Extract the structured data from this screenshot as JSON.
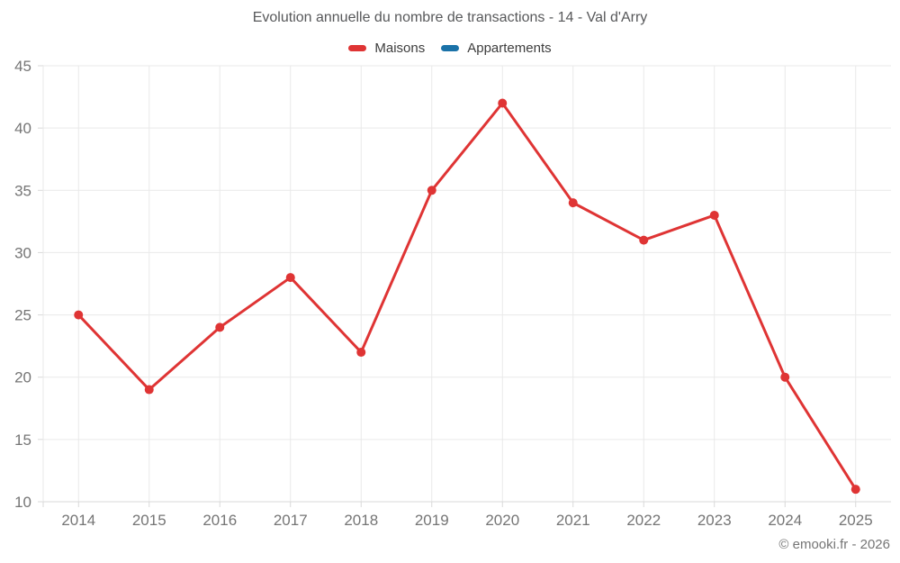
{
  "header": {
    "title": "Evolution annuelle du nombre de transactions - 14 - Val d'Arry"
  },
  "legend": {
    "items": [
      {
        "label": "Maisons",
        "color": "#df3434"
      },
      {
        "label": "Appartements",
        "color": "#1a72a8"
      }
    ]
  },
  "footer": {
    "copyright": "© emooki.fr - 2026"
  },
  "colors": {
    "grid": "#e9e9e9",
    "axis_line": "#d9d9d9",
    "tick_label": "#757575",
    "series_maisons": "#df3434",
    "series_appartements": "#1a72a8"
  },
  "chart_data": {
    "type": "line",
    "title": "Evolution annuelle du nombre de transactions - 14 - Val d'Arry",
    "x": [
      "2014",
      "2015",
      "2016",
      "2017",
      "2018",
      "2019",
      "2020",
      "2021",
      "2022",
      "2023",
      "2024",
      "2025"
    ],
    "series": [
      {
        "name": "Maisons",
        "color": "#df3434",
        "values": [
          25,
          19,
          24,
          28,
          22,
          35,
          42,
          34,
          31,
          33,
          20,
          11
        ]
      },
      {
        "name": "Appartements",
        "color": "#1a72a8",
        "values": []
      }
    ],
    "xlabel": "",
    "ylabel": "",
    "ylim": [
      10,
      45
    ],
    "y_ticks": [
      10,
      15,
      20,
      25,
      30,
      35,
      40,
      45
    ],
    "grid": true,
    "legend_position": "top",
    "marker": "circle"
  }
}
